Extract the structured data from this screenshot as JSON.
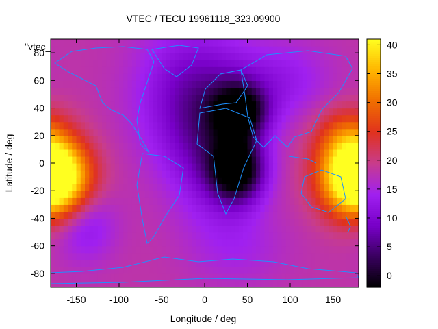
{
  "chart_data": {
    "type": "heatmap",
    "title": "VTEC / TECU 19961118_323.09900",
    "xlabel": "Longitude / deg",
    "ylabel": "Latitude / deg",
    "xlim": [
      -180,
      180
    ],
    "ylim": [
      -90,
      90
    ],
    "x_ticks": [
      -150,
      -100,
      -50,
      0,
      50,
      100,
      150
    ],
    "y_ticks": [
      80,
      60,
      40,
      20,
      0,
      -20,
      -40,
      -60,
      -80
    ],
    "colorbar": {
      "range": [
        -2,
        41
      ],
      "ticks": [
        40,
        35,
        30,
        25,
        20,
        15,
        10,
        5,
        0
      ],
      "palette": [
        "#000000",
        "#3a0060",
        "#7800c8",
        "#a020f0",
        "#c83c8c",
        "#e0321e",
        "#f06e00",
        "#ffb400",
        "#ffff20"
      ]
    },
    "series_label": "\"vtec_",
    "overlay": "coastlines",
    "approx_features": [
      {
        "name": "peak-east-pacific",
        "lon": -178,
        "lat": -12,
        "value": 40
      },
      {
        "name": "peak-west-pacific",
        "lon": 175,
        "lat": -10,
        "value": 38
      },
      {
        "name": "low-africa-equator",
        "lon": 40,
        "lat": -5,
        "value": 0
      },
      {
        "name": "low-north-africa",
        "lon": 40,
        "lat": 38,
        "value": 1
      },
      {
        "name": "americas-sector",
        "lon": -60,
        "lat": 0,
        "value": 18
      },
      {
        "name": "north-atlantic",
        "lon": -20,
        "lat": 50,
        "value": 8
      }
    ]
  }
}
